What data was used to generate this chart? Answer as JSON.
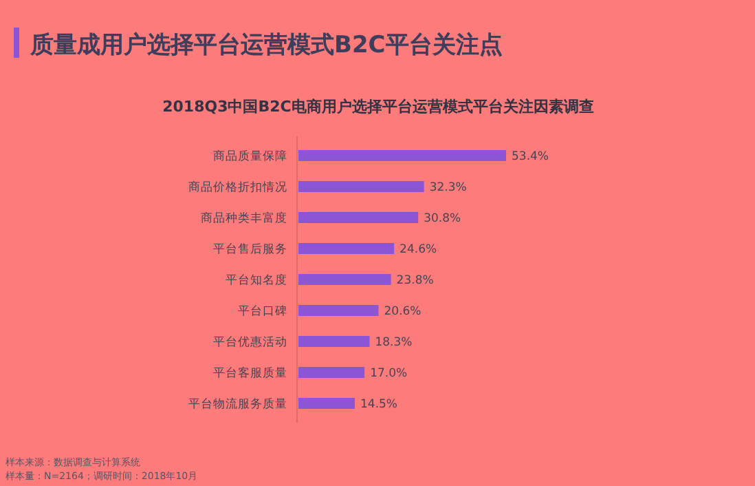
{
  "chart_data": {
    "type": "bar",
    "orientation": "horizontal",
    "title": "质量成用户选择平台运营模式B2C平台关注点",
    "subtitle": "2018Q3中国B2C电商用户选择平台运营模式平台关注因素调查",
    "categories": [
      "商品质量保障",
      "商品价格折扣情况",
      "商品种类丰富度",
      "平台售后服务",
      "平台知名度",
      "平台口碑",
      "平台优惠活动",
      "平台客服质量",
      "平台物流服务质量"
    ],
    "values": [
      53.4,
      32.3,
      30.8,
      24.6,
      23.8,
      20.6,
      18.3,
      17.0,
      14.5
    ],
    "value_labels": [
      "53.4%",
      "32.3%",
      "30.8%",
      "24.6%",
      "23.8%",
      "20.6%",
      "18.3%",
      "17.0%",
      "14.5%"
    ],
    "color": "#8b55d6",
    "annotations": [
      "样本来源：数据调查与计算系统",
      "样本量：N=2164；调研时间：2018年10月"
    ]
  }
}
